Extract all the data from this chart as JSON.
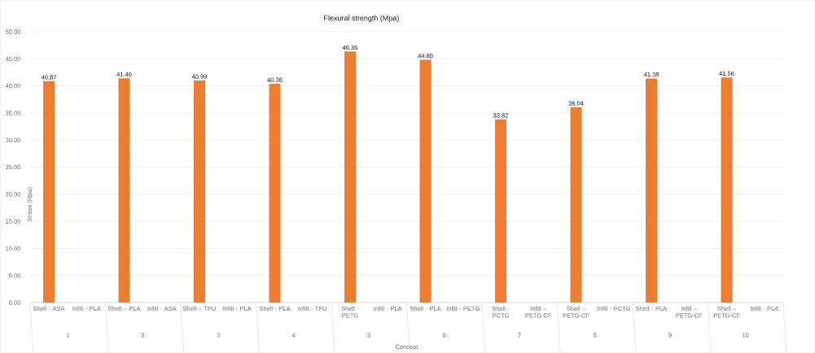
{
  "chart_data": {
    "type": "bar",
    "title": "Flexural strength (Mpa)",
    "xlabel": "Concept",
    "ylabel": "Stress (Mpa)",
    "categories": [
      "Shell - ASA",
      "Infill - PLA",
      "Shell – PLA",
      "Infill - ASA",
      "Shell – TPU",
      "Infill - PLA",
      "Shell - PLA",
      "Infill - TPU",
      "Shell - PETG",
      "Infill - PLA",
      "Shell - PLA",
      "Infill - PETG",
      "Shell - PCTG",
      "Infill – PETG-CF",
      "Shell – PETG-CF",
      "Infill - PCTG",
      "Shell - PLA",
      "Infill – PETG-CF",
      "Shell – PETG-CF",
      "Infill - PLA"
    ],
    "values": [
      40.87,
      null,
      41.4,
      null,
      40.99,
      null,
      40.38,
      null,
      46.35,
      null,
      44.8,
      null,
      33.82,
      null,
      36.04,
      null,
      41.38,
      null,
      41.56,
      null
    ],
    "value_labels": [
      "40.87",
      null,
      "41.40",
      null,
      "40.99",
      null,
      "40.38",
      null,
      "46.35",
      null,
      "44.80",
      null,
      "33.82",
      null,
      "36.04",
      null,
      "41.38",
      null,
      "41.56",
      null
    ],
    "color": "#ed7d31",
    "annotations": [
      "1",
      "2",
      "3",
      "4",
      "5",
      "6",
      "7",
      "8",
      "9",
      "10"
    ],
    "ylim": [
      0,
      50
    ],
    "yticks": [
      {
        "value": 0,
        "label": "0.00"
      },
      {
        "value": 5,
        "label": "5.00"
      },
      {
        "value": 10,
        "label": "10.00"
      },
      {
        "value": 15,
        "label": "15.00"
      },
      {
        "value": 20,
        "label": "20.00"
      },
      {
        "value": 25,
        "label": "25.00"
      },
      {
        "value": 30,
        "label": "30.00"
      },
      {
        "value": 35,
        "label": "35.00"
      },
      {
        "value": 40,
        "label": "40.00"
      },
      {
        "value": 45,
        "label": "45.00"
      },
      {
        "value": 50,
        "label": "50.00"
      }
    ],
    "grid": "y"
  }
}
